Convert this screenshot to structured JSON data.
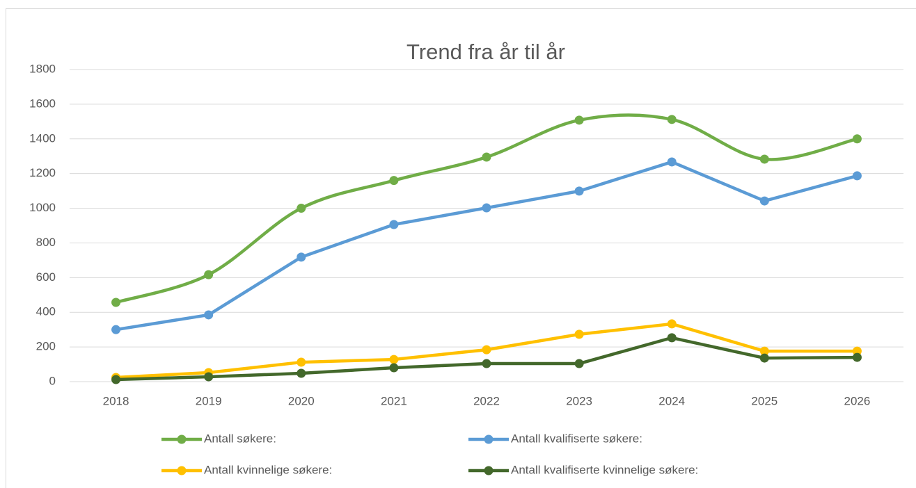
{
  "chart_data": {
    "type": "line",
    "title": "Trend fra år til år",
    "categories": [
      "2018",
      "2019",
      "2020",
      "2021",
      "2022",
      "2023",
      "2024",
      "2025",
      "2026"
    ],
    "series": [
      {
        "name": "Antall søkere:",
        "color": "#70ad47",
        "smooth": true,
        "values": [
          457,
          617,
          1000,
          1160,
          1295,
          1508,
          1512,
          1283,
          1400
        ]
      },
      {
        "name": "Antall kvalifiserte søkere:",
        "color": "#5b9bd5",
        "values": [
          300,
          385,
          718,
          906,
          1002,
          1099,
          1267,
          1042,
          1187
        ]
      },
      {
        "name": "Antall kvinnelige søkere:",
        "color": "#ffc000",
        "values": [
          24,
          52,
          112,
          128,
          184,
          273,
          333,
          176,
          176
        ]
      },
      {
        "name": "Antall kvalifiserte kvinnelige søkere:",
        "color": "#43682b",
        "values": [
          12,
          28,
          48,
          80,
          104,
          104,
          253,
          136,
          140
        ]
      }
    ],
    "ylim": [
      0,
      1800
    ],
    "yticks": [
      0,
      200,
      400,
      600,
      800,
      1000,
      1200,
      1400,
      1600,
      1800
    ],
    "grid": true,
    "legend": "bottom"
  }
}
